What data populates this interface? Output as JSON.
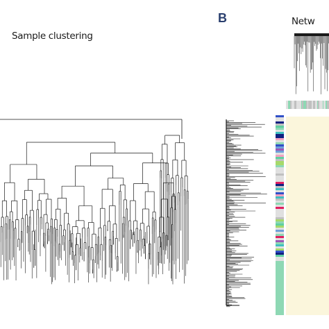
{
  "panel_a": {
    "title": "Sample clustering"
  },
  "panel_b": {
    "letter": "B",
    "title": "Netw"
  },
  "colors": {
    "tree_line": "#1a1a1a",
    "heatmap_background": "#fbf6dc",
    "module_colors": [
      "#e0e0e0",
      "#8ed8b4",
      "#6fa0d8",
      "#9b59b6",
      "#e8408c",
      "#a6d96a",
      "#3050c8",
      "#f4a0c0",
      "#40c0c0",
      "#c0c0c0",
      "#102080",
      "#60d0a0",
      "#e02060"
    ]
  }
}
